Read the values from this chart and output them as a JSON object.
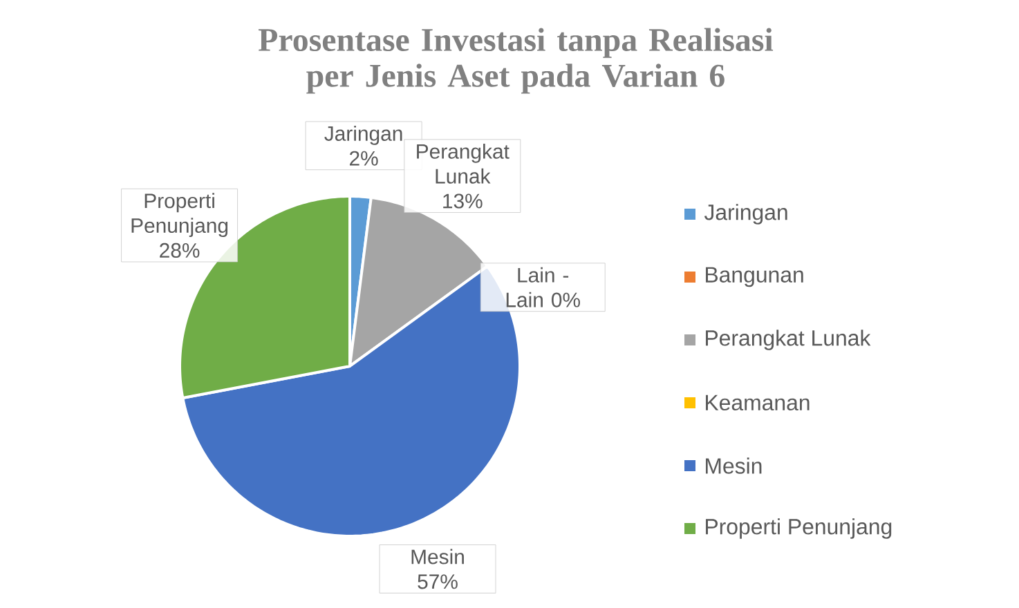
{
  "chart_data": {
    "type": "pie",
    "title": "Prosentase Investasi tanpa Realisasi per Jenis Aset pada Varian 6",
    "categories": [
      "Jaringan",
      "Bangunan",
      "Perangkat Lunak",
      "Keamanan",
      "Mesin",
      "Properti Penunjang"
    ],
    "values": [
      2,
      0,
      13,
      0,
      57,
      28
    ],
    "value_labels": [
      "2%",
      null,
      "13%",
      null,
      "57%",
      "28%"
    ],
    "colors": [
      "#5b9bd5",
      "#ed7d31",
      "#a5a5a5",
      "#ffc000",
      "#4472c4",
      "#70ad47"
    ],
    "legend": "right",
    "annotations": [
      "Lain - Lain 0%"
    ]
  }
}
